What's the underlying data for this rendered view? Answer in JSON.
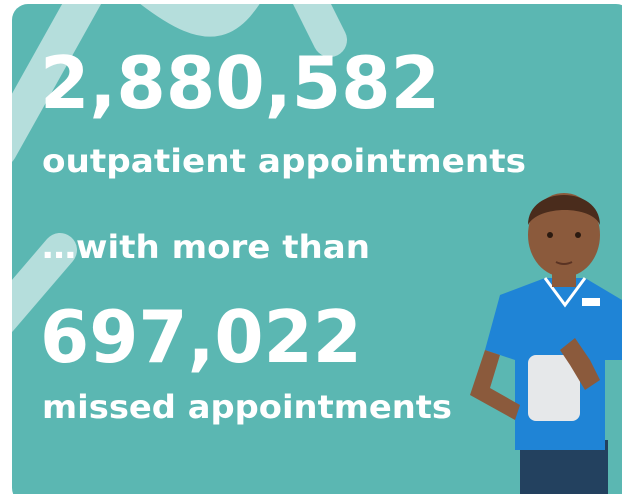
{
  "headline": {
    "number": "2,880,582",
    "label": "outpatient appointments"
  },
  "connector": "…with more than",
  "secondary": {
    "number": "697,022",
    "label": "missed appointments"
  }
}
